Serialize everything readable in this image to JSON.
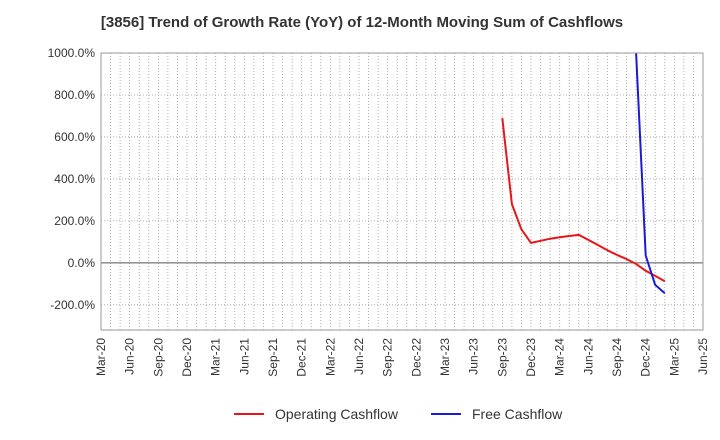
{
  "chart_data": {
    "type": "line",
    "title": "[3856]  Trend of Growth Rate (YoY) of 12-Month Moving Sum of Cashflows",
    "xlabel": "",
    "ylabel": "",
    "x_ticks": [
      "Mar-20",
      "Jun-20",
      "Sep-20",
      "Dec-20",
      "Mar-21",
      "Jun-21",
      "Sep-21",
      "Dec-21",
      "Mar-22",
      "Jun-22",
      "Sep-22",
      "Dec-22",
      "Mar-23",
      "Jun-23",
      "Sep-23",
      "Dec-23",
      "Mar-24",
      "Jun-24",
      "Sep-24",
      "Dec-24",
      "Mar-25",
      "Jun-25"
    ],
    "y_ticks": [
      "1000.0%",
      "800.0%",
      "600.0%",
      "400.0%",
      "200.0%",
      "0.0%",
      "-200.0%"
    ],
    "y_tick_values": [
      1000,
      800,
      600,
      400,
      200,
      0,
      -200
    ],
    "ylim": [
      -320,
      1000
    ],
    "x_unit": "month",
    "grid": true,
    "legend_position": "bottom",
    "series": [
      {
        "name": "Operating Cashflow",
        "color": "#e8161b",
        "points": [
          [
            "2023-09",
            690
          ],
          [
            "2023-10",
            280
          ],
          [
            "2023-11",
            160
          ],
          [
            "2023-12",
            95
          ],
          [
            "2024-01",
            105
          ],
          [
            "2024-02",
            115
          ],
          [
            "2024-03",
            122
          ],
          [
            "2024-04",
            128
          ],
          [
            "2024-05",
            133
          ],
          [
            "2024-06",
            110
          ],
          [
            "2024-07",
            85
          ],
          [
            "2024-08",
            60
          ],
          [
            "2024-09",
            38
          ],
          [
            "2024-10",
            18
          ],
          [
            "2024-11",
            -5
          ],
          [
            "2024-12",
            -38
          ],
          [
            "2025-01",
            -62
          ],
          [
            "2025-02",
            -88
          ]
        ]
      },
      {
        "name": "Free Cashflow",
        "color": "#1b1bd1",
        "points": [
          [
            "2024-11",
            1000
          ],
          [
            "2024-12",
            35
          ],
          [
            "2025-01",
            -105
          ],
          [
            "2025-02",
            -145
          ]
        ]
      }
    ]
  }
}
